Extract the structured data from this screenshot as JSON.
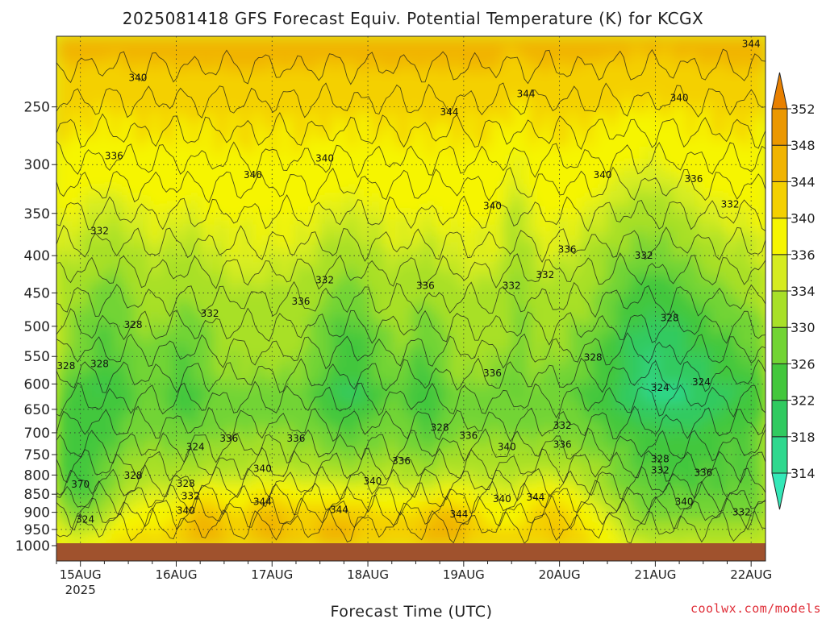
{
  "chart_data": {
    "type": "heatmap",
    "title": "2025081418 GFS Forecast Equiv. Potential Temperature (K) for KCGX",
    "xlabel": "Forecast Time (UTC)",
    "ylabel": "",
    "credit": "coolwx.com/models",
    "x_ticks": [
      "15AUG",
      "16AUG",
      "17AUG",
      "18AUG",
      "19AUG",
      "20AUG",
      "21AUG",
      "22AUG"
    ],
    "x_year_label": "2025",
    "x_range_days": [
      14.75,
      22.15
    ],
    "y_axis": "pressure (hPa), log scale, inverted",
    "y_ticks": [
      250,
      300,
      350,
      400,
      450,
      500,
      550,
      600,
      650,
      700,
      750,
      800,
      850,
      900,
      950,
      1000
    ],
    "y_ticks_text": [
      "250",
      "300",
      "350",
      "400",
      "450",
      "500",
      "550",
      "600",
      "650",
      "700",
      "750",
      "800",
      "850",
      "900",
      "950",
      "1000"
    ],
    "ylim": [
      200,
      1000
    ],
    "grid": true,
    "colorbar": {
      "levels": [
        314,
        318,
        322,
        326,
        330,
        334,
        336,
        340,
        344,
        348,
        352
      ],
      "labels": [
        "314",
        "318",
        "322",
        "326",
        "330",
        "334",
        "336",
        "340",
        "344",
        "348",
        "352"
      ],
      "colors": [
        "#34e8b8",
        "#2fd88e",
        "#30ca60",
        "#43c73c",
        "#72d434",
        "#a8e028",
        "#d6ec20",
        "#f6f500",
        "#f4d000",
        "#f1b400",
        "#ec9800",
        "#e88000"
      ],
      "extends": "both"
    },
    "ground_color": "#a0522d",
    "contour_labels": [
      {
        "text": "344",
        "day": 22.0,
        "p": 205
      },
      {
        "text": "340",
        "day": 15.6,
        "p": 228
      },
      {
        "text": "344",
        "day": 19.65,
        "p": 240
      },
      {
        "text": "344",
        "day": 18.85,
        "p": 254
      },
      {
        "text": "340",
        "day": 21.25,
        "p": 243
      },
      {
        "text": "336",
        "day": 15.35,
        "p": 292
      },
      {
        "text": "340",
        "day": 17.55,
        "p": 294
      },
      {
        "text": "340",
        "day": 16.8,
        "p": 310
      },
      {
        "text": "340",
        "day": 20.45,
        "p": 310
      },
      {
        "text": "336",
        "day": 21.4,
        "p": 314
      },
      {
        "text": "340",
        "day": 19.3,
        "p": 342
      },
      {
        "text": "332",
        "day": 21.78,
        "p": 340
      },
      {
        "text": "332",
        "day": 15.2,
        "p": 370
      },
      {
        "text": "336",
        "day": 20.08,
        "p": 392
      },
      {
        "text": "332",
        "day": 20.88,
        "p": 400
      },
      {
        "text": "332",
        "day": 17.55,
        "p": 432
      },
      {
        "text": "332",
        "day": 19.85,
        "p": 425
      },
      {
        "text": "336",
        "day": 18.6,
        "p": 440
      },
      {
        "text": "332",
        "day": 19.5,
        "p": 440
      },
      {
        "text": "336",
        "day": 17.3,
        "p": 462
      },
      {
        "text": "332",
        "day": 16.35,
        "p": 480
      },
      {
        "text": "328",
        "day": 15.55,
        "p": 498
      },
      {
        "text": "328",
        "day": 21.15,
        "p": 487
      },
      {
        "text": "328",
        "day": 15.2,
        "p": 563
      },
      {
        "text": "328",
        "day": 14.85,
        "p": 567
      },
      {
        "text": "328",
        "day": 20.35,
        "p": 552
      },
      {
        "text": "336",
        "day": 19.3,
        "p": 580
      },
      {
        "text": "324",
        "day": 21.05,
        "p": 607
      },
      {
        "text": "324",
        "day": 21.48,
        "p": 596
      },
      {
        "text": "332",
        "day": 20.03,
        "p": 684
      },
      {
        "text": "328",
        "day": 18.75,
        "p": 689
      },
      {
        "text": "336",
        "day": 16.55,
        "p": 713
      },
      {
        "text": "336",
        "day": 17.25,
        "p": 713
      },
      {
        "text": "336",
        "day": 19.05,
        "p": 706
      },
      {
        "text": "336",
        "day": 20.03,
        "p": 726
      },
      {
        "text": "324",
        "day": 16.2,
        "p": 732
      },
      {
        "text": "340",
        "day": 19.45,
        "p": 732
      },
      {
        "text": "336",
        "day": 18.35,
        "p": 765
      },
      {
        "text": "328",
        "day": 21.05,
        "p": 761
      },
      {
        "text": "340",
        "day": 16.9,
        "p": 784
      },
      {
        "text": "332",
        "day": 21.05,
        "p": 788
      },
      {
        "text": "336",
        "day": 21.5,
        "p": 794
      },
      {
        "text": "328",
        "day": 15.55,
        "p": 801
      },
      {
        "text": "340",
        "day": 18.05,
        "p": 816
      },
      {
        "text": "328",
        "day": 16.1,
        "p": 822
      },
      {
        "text": "370",
        "day": 15.0,
        "p": 824
      },
      {
        "text": "332",
        "day": 16.15,
        "p": 855
      },
      {
        "text": "344",
        "day": 19.75,
        "p": 858
      },
      {
        "text": "340",
        "day": 19.4,
        "p": 863
      },
      {
        "text": "344",
        "day": 16.9,
        "p": 870
      },
      {
        "text": "340",
        "day": 21.3,
        "p": 870
      },
      {
        "text": "340",
        "day": 16.1,
        "p": 895
      },
      {
        "text": "344",
        "day": 17.7,
        "p": 893
      },
      {
        "text": "344",
        "day": 18.95,
        "p": 905
      },
      {
        "text": "332",
        "day": 21.9,
        "p": 900
      },
      {
        "text": "324",
        "day": 15.05,
        "p": 920
      }
    ]
  }
}
